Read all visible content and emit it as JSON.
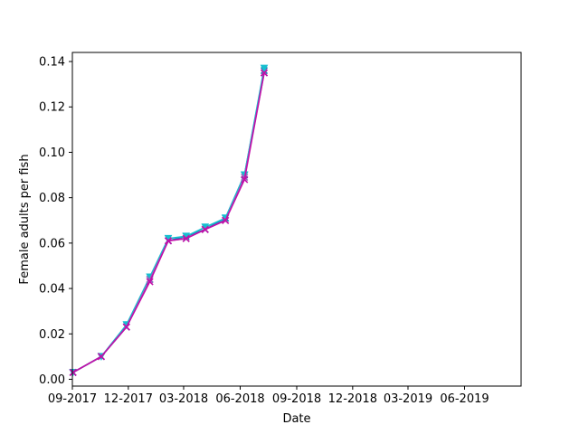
{
  "chart_data": {
    "type": "line",
    "xlabel": "Date",
    "ylabel": "Female adults per fish",
    "xlim": [
      "2017-09-01",
      "2019-09-01"
    ],
    "ylim": [
      -0.003,
      0.144
    ],
    "grid": false,
    "x_ticks": [
      {
        "date": "2017-09-01",
        "label": "09-2017"
      },
      {
        "date": "2017-12-01",
        "label": "12-2017"
      },
      {
        "date": "2018-03-01",
        "label": "03-2018"
      },
      {
        "date": "2018-06-01",
        "label": "06-2018"
      },
      {
        "date": "2018-09-01",
        "label": "09-2018"
      },
      {
        "date": "2018-12-01",
        "label": "12-2018"
      },
      {
        "date": "2019-03-01",
        "label": "03-2019"
      },
      {
        "date": "2019-06-01",
        "label": "06-2019"
      }
    ],
    "y_ticks": [
      {
        "value": 0.0,
        "label": "0.00"
      },
      {
        "value": 0.02,
        "label": "0.02"
      },
      {
        "value": 0.04,
        "label": "0.04"
      },
      {
        "value": 0.06,
        "label": "0.06"
      },
      {
        "value": 0.08,
        "label": "0.08"
      },
      {
        "value": 0.1,
        "label": "0.10"
      },
      {
        "value": 0.12,
        "label": "0.12"
      },
      {
        "value": 0.14,
        "label": "0.14"
      }
    ],
    "x": [
      "2017-09-02",
      "2017-10-18",
      "2017-11-28",
      "2018-01-05",
      "2018-02-04",
      "2018-03-05",
      "2018-04-05",
      "2018-05-08",
      "2018-06-08",
      "2018-07-10"
    ],
    "series": [
      {
        "color": "#1f77b4",
        "marker": "x",
        "values": [
          0.003,
          0.01,
          0.023,
          0.044,
          0.061,
          0.063,
          0.066,
          0.071,
          0.09,
          0.136
        ]
      },
      {
        "color": "#17becf",
        "marker": "v",
        "values": [
          0.003,
          0.01,
          0.024,
          0.045,
          0.062,
          0.063,
          0.067,
          0.071,
          0.09,
          0.137
        ]
      },
      {
        "color": "#9467bd",
        "marker": "x",
        "values": [
          0.003,
          0.01,
          0.023,
          0.044,
          0.061,
          0.062,
          0.066,
          0.07,
          0.089,
          0.135
        ]
      },
      {
        "color": "#c20fa8",
        "marker": "x",
        "values": [
          0.003,
          0.01,
          0.023,
          0.043,
          0.061,
          0.062,
          0.066,
          0.07,
          0.088,
          0.135
        ]
      }
    ]
  }
}
